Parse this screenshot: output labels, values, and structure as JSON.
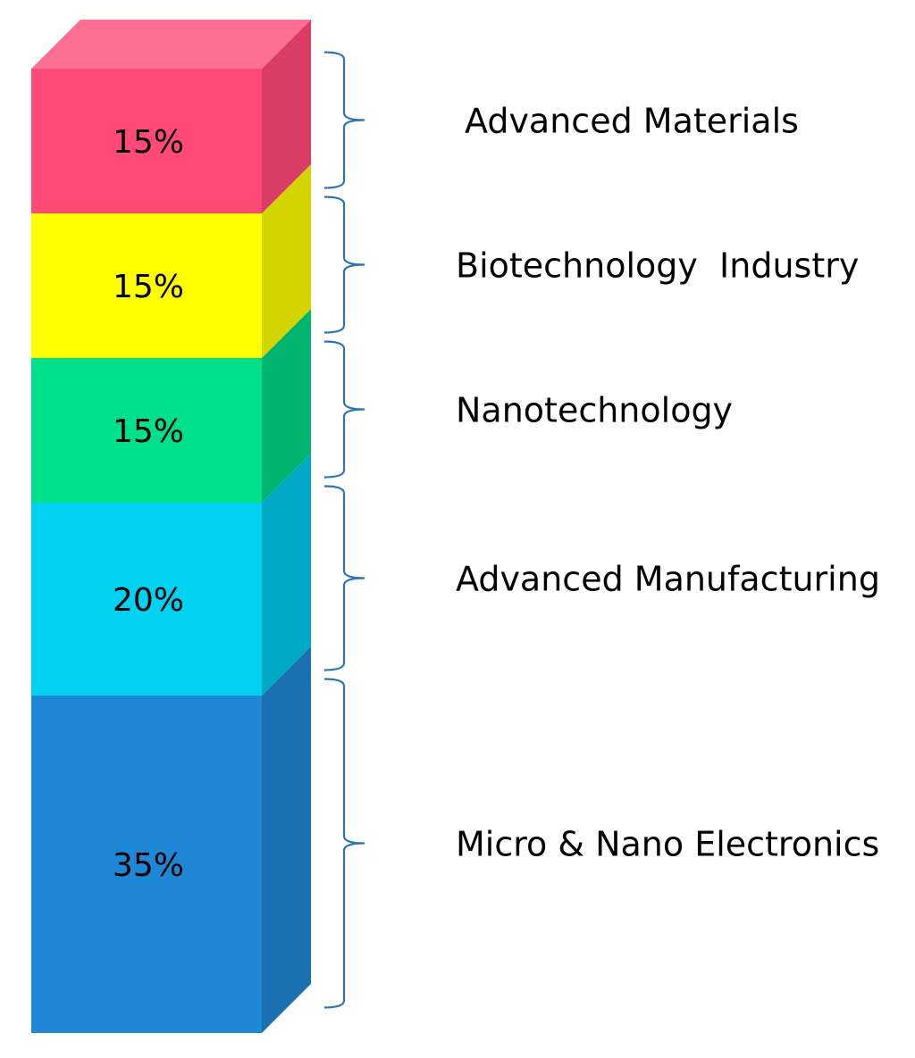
{
  "chart_data": {
    "type": "bar",
    "subtype": "stacked-3d-single-column",
    "title": "",
    "xlabel": "",
    "ylabel": "",
    "unit": "%",
    "ylim": [
      0,
      100
    ],
    "legend": "right, brace-labeled",
    "grid": false,
    "segments": [
      {
        "category": "Micro & Nano Electronics",
        "value": 35,
        "label": "35%",
        "color": "#1f88d6",
        "side_color": "#1a6fb0"
      },
      {
        "category": "Advanced Manufacturing",
        "value": 20,
        "label": "20%",
        "color": "#00d1f0",
        "side_color": "#00a9c6"
      },
      {
        "category": "Nanotechnology",
        "value": 15,
        "label": "15%",
        "color": "#00df8a",
        "side_color": "#00b56e"
      },
      {
        "category": "Biotechnology  Industry",
        "value": 15,
        "label": "15%",
        "color": "#ffff00",
        "side_color": "#d4d400"
      },
      {
        "category": "Advanced Materials",
        "value": 15,
        "label": "15%",
        "color": "#ff4a78",
        "side_color": "#d93d65",
        "top_color": "#ff6f94"
      }
    ]
  }
}
